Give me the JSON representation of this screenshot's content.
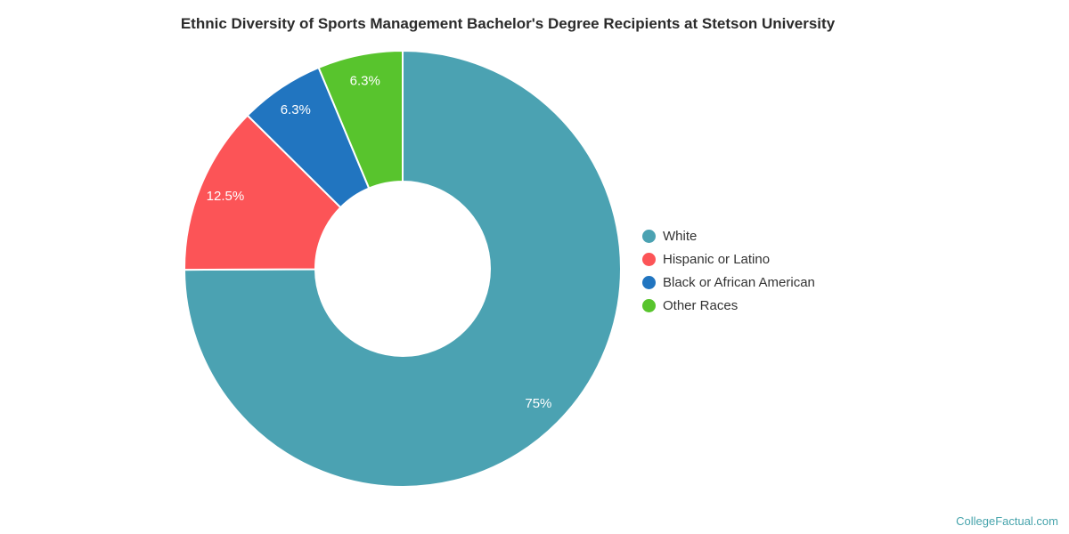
{
  "title": "Ethnic Diversity of Sports Management Bachelor's Degree Recipients at Stetson University",
  "watermark": "CollegeFactual.com",
  "chart_data": {
    "type": "donut",
    "title": "Ethnic Diversity of Sports Management Bachelor's Degree Recipients at Stetson University",
    "categories": [
      "White",
      "Hispanic or Latino",
      "Black or African American",
      "Other Races"
    ],
    "values": [
      75,
      12.5,
      6.3,
      6.3
    ],
    "slice_labels": [
      "75%",
      "12.5%",
      "6.3%",
      "6.3%"
    ],
    "colors": [
      "#4BA2B2",
      "#FC5457",
      "#2175C0",
      "#58C42D"
    ],
    "start_angle_deg": 0,
    "direction": "clockwise",
    "legend_position": "right",
    "slice_border_color": "#ffffff",
    "label_color": "#ffffff"
  }
}
